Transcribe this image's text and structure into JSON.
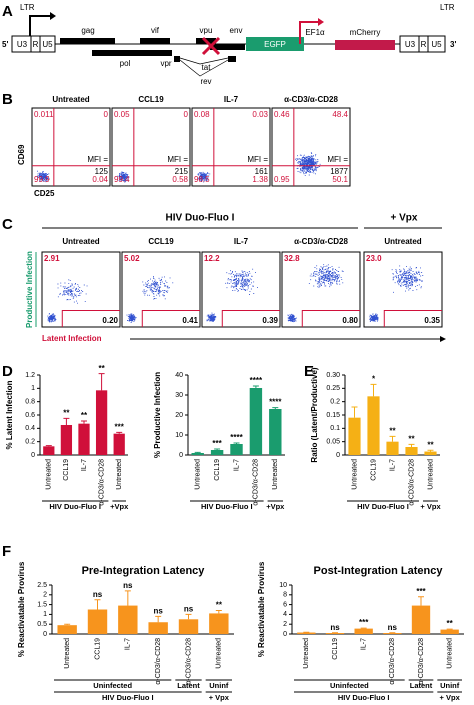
{
  "panel_labels": [
    "A",
    "B",
    "C",
    "D",
    "E",
    "F"
  ],
  "genome": {
    "ltr5": "LTR",
    "p5": "5'",
    "u3": "U3",
    "r": "R",
    "u5": "U5",
    "genes": [
      "gag",
      "vif",
      "vpu",
      "env",
      "EGFP",
      "EF1α",
      "mCherry",
      "pol",
      "vpr",
      "tat",
      "rev"
    ],
    "ltr3": "LTR",
    "p3": "3'",
    "u3b": "U3",
    "rb": "R",
    "u5b": "U5"
  },
  "flow_b": {
    "y_label": "CD69",
    "x_label": "CD25",
    "mfi_label": "MFI =",
    "plots": [
      {
        "title": "Untreated",
        "ul": "0.011",
        "ur": "0",
        "ll": "99.9",
        "lr": "0.04",
        "mfi": "125"
      },
      {
        "title": "CCL19",
        "ul": "0.05",
        "ur": "0",
        "ll": "99.4",
        "lr": "0.58",
        "mfi": "215"
      },
      {
        "title": "IL-7",
        "ul": "0.08",
        "ur": "0.03",
        "ll": "98.5",
        "lr": "1.38",
        "mfi": "161"
      },
      {
        "title": "α-CD3/α-CD28",
        "ul": "0.46",
        "ur": "48.4",
        "ll": "0.95",
        "lr": "50.1",
        "mfi": "1877"
      }
    ]
  },
  "flow_c": {
    "header": "HIV Duo-Fluo I",
    "header2": "+ Vpx",
    "y_label": "Productive Infection",
    "x_label": "Latent Infection",
    "plots": [
      {
        "title": "Untreated",
        "ul": "2.91",
        "lr": "0.20"
      },
      {
        "title": "CCL19",
        "ul": "5.02",
        "lr": "0.41"
      },
      {
        "title": "IL-7",
        "ul": "12.2",
        "lr": "0.39"
      },
      {
        "title": "α-CD3/α-CD28",
        "ul": "32.8",
        "lr": "0.80"
      },
      {
        "title": "Untreated",
        "ul": "23.0",
        "lr": "0.35"
      }
    ]
  },
  "chart_data": [
    {
      "type": "bar",
      "y_label": "% Latent Infection",
      "categories": [
        "Untreated",
        "CCL19",
        "IL-7",
        "α-CD3/α-CD28",
        "Untreated"
      ],
      "values": [
        0.13,
        0.45,
        0.47,
        0.97,
        0.32
      ],
      "errors": [
        0.01,
        0.1,
        0.04,
        0.25,
        0.02
      ],
      "significance": [
        null,
        "**",
        "**",
        "**",
        "***"
      ],
      "color": "#d0103a",
      "ylim": [
        0,
        1.2
      ],
      "yticks": [
        0,
        0.2,
        0.4,
        0.6,
        0.8,
        1,
        1.2
      ],
      "group_labels": [
        "HIV Duo-Fluo I",
        "+Vpx"
      ]
    },
    {
      "type": "bar",
      "y_label": "% Productive Infection",
      "categories": [
        "Untreated",
        "CCL19",
        "IL-7",
        "α-CD3/α-CD28",
        "Untreated"
      ],
      "values": [
        1,
        2.5,
        5.5,
        33.5,
        23
      ],
      "errors": [
        0.3,
        0.5,
        0.5,
        1,
        0.7
      ],
      "significance": [
        null,
        "***",
        "****",
        "****",
        "****"
      ],
      "color": "#1a9c6e",
      "ylim": [
        0,
        40
      ],
      "yticks": [
        0,
        10,
        20,
        30,
        40
      ],
      "group_labels": [
        "HIV Duo-Fluo I",
        "+Vpx"
      ]
    },
    {
      "type": "bar",
      "y_label": "Ratio (Latent/Productive)",
      "categories": [
        "Untreated",
        "CCL19",
        "IL-7",
        "α-CD3/α-CD28",
        "Untreated"
      ],
      "values": [
        0.14,
        0.22,
        0.05,
        0.03,
        0.013
      ],
      "errors": [
        0.04,
        0.045,
        0.02,
        0.01,
        0.005
      ],
      "significance": [
        null,
        "*",
        "**",
        "**",
        "**"
      ],
      "color": "#f5b015",
      "ylim": [
        0,
        0.3
      ],
      "yticks": [
        0,
        0.05,
        0.1,
        0.15,
        0.2,
        0.25,
        {
          "value": 0.3,
          "label": "0.30"
        }
      ],
      "group_labels": [
        "HIV Duo-Fluo I",
        "+ Vpx"
      ]
    },
    {
      "type": "bar",
      "title": "Pre-Integration Latency",
      "y_label": "% Reactivatable Provirus",
      "categories": [
        "Untreated",
        "CCL19",
        "IL-7",
        "α-CD3/α-CD28",
        "α-CD3/α-CD28",
        "Untreated"
      ],
      "values": [
        0.45,
        1.25,
        1.45,
        0.6,
        0.75,
        1.05
      ],
      "errors": [
        0.05,
        0.5,
        0.75,
        0.3,
        0.25,
        0.15
      ],
      "significance": [
        null,
        "ns",
        "ns",
        "ns",
        "ns",
        "**"
      ],
      "color": "#f7941d",
      "ylim": [
        0,
        2.5
      ],
      "yticks": [
        0,
        0.5,
        1,
        1.5,
        2,
        2.5
      ],
      "group_labels": [
        "Uninfected",
        "Latent",
        "Uninf",
        "HIV Duo-Fluo I",
        "+ Vpx"
      ]
    },
    {
      "type": "bar",
      "title": "Post-Integration Latency",
      "y_label": "% Reactivatable Provirus",
      "categories": [
        "Untreated",
        "CCL19",
        "IL-7",
        "α-CD3/α-CD28",
        "α-CD3/α-CD28",
        "Untreated"
      ],
      "values": [
        0.3,
        0.2,
        1.1,
        0.2,
        5.8,
        0.9
      ],
      "errors": [
        0.05,
        0.05,
        0.1,
        0.05,
        1.8,
        0.1
      ],
      "significance": [
        null,
        "ns",
        "***",
        "ns",
        "***",
        "**"
      ],
      "color": "#f7941d",
      "ylim": [
        0,
        10
      ],
      "yticks": [
        0,
        2,
        4,
        6,
        8,
        10
      ],
      "group_labels": [
        "Uninfected",
        "Latent",
        "Uninf",
        "HIV Duo-Fluo I",
        "+ Vpx"
      ]
    }
  ]
}
